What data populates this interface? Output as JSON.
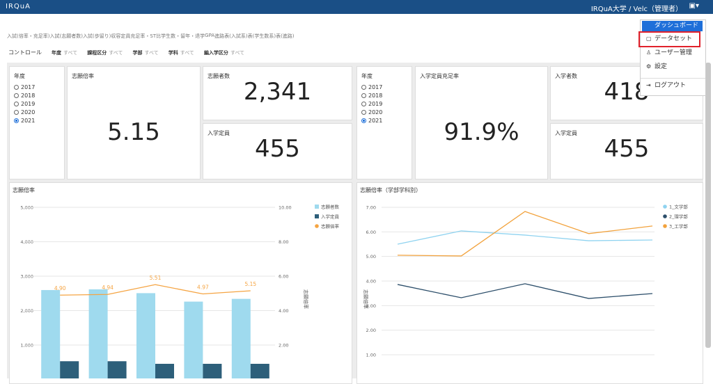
{
  "header": {
    "brand": "IRQuA",
    "user": "IRQuA大学 / Velc（管理者）"
  },
  "tabs": [
    "入試(倍率・充足率)",
    "入試(志願者数)",
    "入試(歩留り)",
    "収容定員充足率・ST比",
    "学生数・留年・退学",
    "GPA",
    "進路",
    "表(入試系)",
    "表(学生数系)",
    "表(進路)"
  ],
  "active_tab": 0,
  "filters": {
    "label": "コントロール",
    "items": [
      {
        "name": "年度",
        "value": "すべて"
      },
      {
        "name": "課程区分",
        "value": "すべて"
      },
      {
        "name": "学部",
        "value": "すべて"
      },
      {
        "name": "学科",
        "value": "すべて"
      },
      {
        "name": "編入学区分",
        "value": "すべて"
      }
    ]
  },
  "year_filters": [
    {
      "title": "年度",
      "options": [
        "2017",
        "2018",
        "2019",
        "2020",
        "2021"
      ],
      "selected": 4
    },
    {
      "title": "年度",
      "options": [
        "2017",
        "2018",
        "2019",
        "2020",
        "2021"
      ],
      "selected": 4
    }
  ],
  "kpis": [
    {
      "title": "志願倍率",
      "value": "5.15"
    },
    {
      "title": "志願者数",
      "value": "2,341"
    },
    {
      "title": "入学定員",
      "value": "455"
    },
    {
      "title": "入学定員充足率",
      "value": "91.9%"
    },
    {
      "title": "入学者数",
      "value": "418"
    },
    {
      "title": "入学定員",
      "value": "455"
    }
  ],
  "menu": {
    "button": "ダッシュボード",
    "items": [
      "データセット",
      "ユーザー管理",
      "設定",
      "ログアウト"
    ]
  },
  "chart_data": [
    {
      "type": "bar",
      "title": "志願倍率",
      "categories": [
        null,
        null,
        null,
        null,
        null
      ],
      "series": [
        {
          "name": "志願者数",
          "color": "#9fdaee",
          "values": [
            2597,
            2618,
            2507,
            2261,
            2341
          ]
        },
        {
          "name": "入学定員",
          "color": "#2d5f7a",
          "values": [
            530,
            530,
            455,
            455,
            455
          ]
        },
        {
          "name": "志願倍率",
          "type": "line",
          "axis": "y2",
          "color": "#f5a442",
          "values": [
            4.9,
            4.94,
            5.51,
            4.97,
            5.15
          ],
          "value_labels": [
            "4.90",
            "4.94",
            "5.51",
            "4.97",
            "5.15"
          ]
        }
      ],
      "ylim": [
        0,
        5000
      ],
      "yticks": [
        {
          "value": 1000,
          "label": "1,000"
        },
        {
          "value": 2000,
          "label": "2,000"
        },
        {
          "value": 3000,
          "label": "3,000"
        },
        {
          "value": 4000,
          "label": "4,000"
        },
        {
          "value": 5000,
          "label": "5,000"
        }
      ],
      "y2lim": [
        0,
        10
      ],
      "y2ticks": [
        {
          "value": 2,
          "label": "2.00"
        },
        {
          "value": 4,
          "label": "4.00"
        },
        {
          "value": 6,
          "label": "6.00"
        },
        {
          "value": 8,
          "label": "8.00"
        },
        {
          "value": 10,
          "label": "10.00"
        }
      ],
      "y2label": "志願倍率",
      "grid": true
    },
    {
      "type": "line",
      "title": "志願倍率（学部学科別）",
      "ylabel": "志願倍率",
      "categories": [
        null,
        null,
        null,
        null,
        null
      ],
      "series": [
        {
          "name": "1_文学部",
          "color": "#8fd3f0",
          "values": [
            5.5,
            6.04,
            5.87,
            5.64,
            5.67
          ]
        },
        {
          "name": "2_理学部",
          "color": "#2c4e6a",
          "values": [
            3.86,
            3.32,
            3.89,
            3.29,
            3.49
          ]
        },
        {
          "name": "3_工学部",
          "color": "#f2a23c",
          "values": [
            5.05,
            5.02,
            6.83,
            5.93,
            6.24
          ]
        }
      ],
      "ylim": [
        0,
        7
      ],
      "yticks": [
        {
          "value": 1,
          "label": "1.00"
        },
        {
          "value": 2,
          "label": "2.00"
        },
        {
          "value": 3,
          "label": "3.00"
        },
        {
          "value": 4,
          "label": "4.00"
        },
        {
          "value": 5,
          "label": "5.00"
        },
        {
          "value": 6,
          "label": "6.00"
        },
        {
          "value": 7,
          "label": "7.00"
        }
      ],
      "grid": true
    }
  ]
}
